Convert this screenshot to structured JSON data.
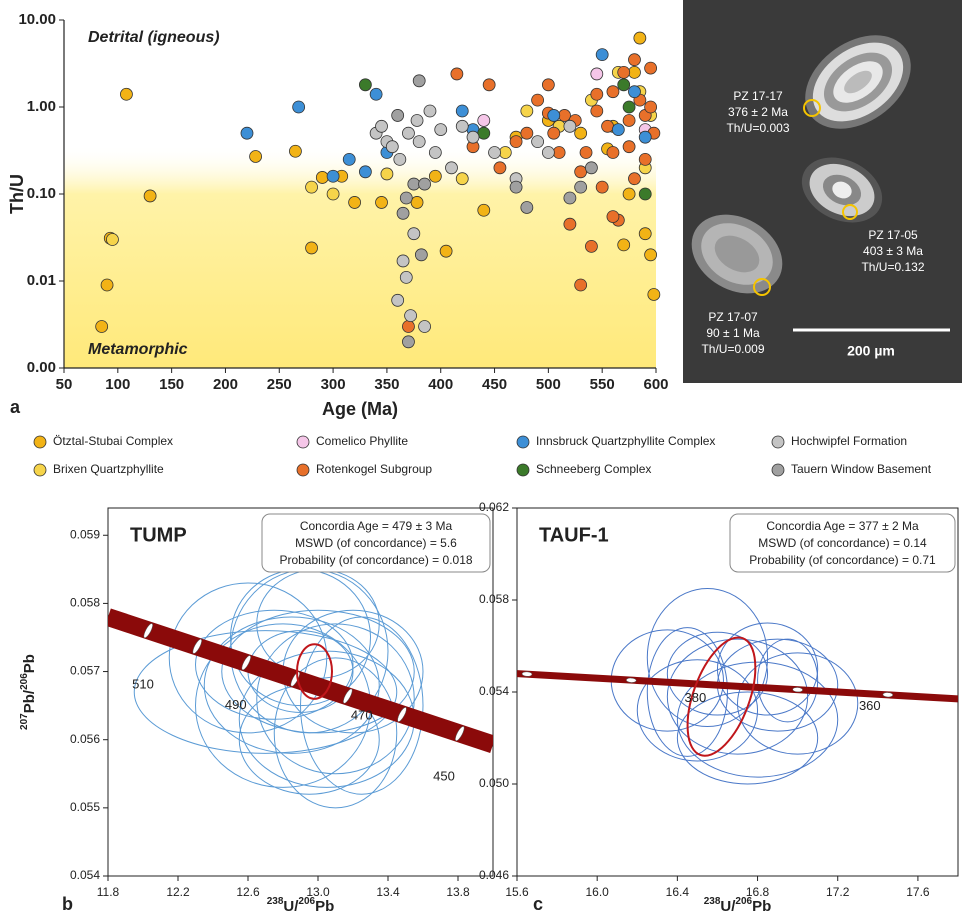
{
  "chart_data": [
    {
      "type": "scatter",
      "panel_label": "a",
      "x_label": "Age (Ma)",
      "y_label": "Th/U",
      "xlim": [
        50,
        600
      ],
      "xticks": [
        50,
        100,
        150,
        200,
        250,
        300,
        350,
        400,
        450,
        500,
        550,
        600
      ],
      "ylim": [
        0.001,
        10
      ],
      "yscale": "log",
      "yticks": [
        {
          "value": 0.001,
          "label": "0.00"
        },
        {
          "value": 0.01,
          "label": "0.01"
        },
        {
          "value": 0.1,
          "label": "0.10"
        },
        {
          "value": 1,
          "label": "1.00"
        },
        {
          "value": 10,
          "label": "10.00"
        }
      ],
      "annotations": [
        "Detrital (igneous)",
        "Metamorphic"
      ],
      "series": [
        {
          "name": "Ötztal-Stubai Complex",
          "color": "#f2b316",
          "x": [
            85,
            90,
            93,
            108,
            130,
            228,
            265,
            280,
            290,
            308,
            320,
            345,
            378,
            395,
            405,
            440,
            470,
            500,
            530,
            555,
            570,
            585,
            590,
            595,
            598,
            560,
            575,
            580
          ],
          "values": [
            0.003,
            0.009,
            0.031,
            1.4,
            0.095,
            0.27,
            0.31,
            0.024,
            0.155,
            0.16,
            0.08,
            0.08,
            0.08,
            0.16,
            0.022,
            0.065,
            0.45,
            0.7,
            0.5,
            0.33,
            0.026,
            6.2,
            0.035,
            0.02,
            0.007,
            0.6,
            0.1,
            2.5
          ]
        },
        {
          "name": "Brixen Quartzphyllite",
          "color": "#f6d44a",
          "x": [
            95,
            280,
            300,
            350,
            420,
            460,
            480,
            510,
            540,
            565,
            585,
            595,
            590
          ],
          "values": [
            0.03,
            0.12,
            0.1,
            0.17,
            0.15,
            0.3,
            0.9,
            0.6,
            1.2,
            2.5,
            1.5,
            0.8,
            0.2
          ]
        },
        {
          "name": "Comelico Phyllite",
          "color": "#f5c6e8",
          "x": [
            440,
            545,
            590
          ],
          "values": [
            0.7,
            2.4,
            0.55
          ]
        },
        {
          "name": "Rotenkogel Subgroup",
          "color": "#e8702a",
          "x": [
            370,
            415,
            430,
            445,
            455,
            470,
            480,
            490,
            500,
            505,
            510,
            515,
            520,
            525,
            530,
            535,
            540,
            545,
            550,
            555,
            560,
            565,
            570,
            575,
            580,
            585,
            590,
            595,
            598,
            545,
            560,
            575,
            590,
            530,
            500,
            560,
            580,
            595
          ],
          "values": [
            0.003,
            2.4,
            0.35,
            1.8,
            0.2,
            0.4,
            0.5,
            1.2,
            1.8,
            0.5,
            0.3,
            0.8,
            0.045,
            0.7,
            0.009,
            0.3,
            0.025,
            0.9,
            0.12,
            0.6,
            1.5,
            0.05,
            2.5,
            0.35,
            0.15,
            1.2,
            0.8,
            2.8,
            0.5,
            1.4,
            0.3,
            0.7,
            0.25,
            0.18,
            0.85,
            0.055,
            3.5,
            1.0
          ]
        },
        {
          "name": "Innsbruck Quartzphyllite Complex",
          "color": "#3d8fd6",
          "x": [
            220,
            268,
            300,
            315,
            330,
            340,
            350,
            420,
            430,
            505,
            550,
            565,
            580,
            590
          ],
          "values": [
            0.5,
            1.0,
            0.16,
            0.25,
            0.18,
            1.4,
            0.3,
            0.9,
            0.55,
            0.8,
            4.0,
            0.55,
            1.5,
            0.45
          ]
        },
        {
          "name": "Schneeberg Complex",
          "color": "#3b7a2a",
          "x": [
            330,
            440,
            570,
            575,
            590
          ],
          "values": [
            1.8,
            0.5,
            1.8,
            1.0,
            0.1
          ]
        },
        {
          "name": "Hochwipfel Formation",
          "color": "#c4c4c4",
          "x": [
            340,
            345,
            350,
            355,
            360,
            362,
            365,
            368,
            370,
            372,
            375,
            378,
            380,
            385,
            390,
            395,
            400,
            410,
            420,
            430,
            450,
            470,
            490,
            500,
            520
          ],
          "values": [
            0.5,
            0.6,
            0.4,
            0.35,
            0.006,
            0.25,
            0.017,
            0.011,
            0.5,
            0.004,
            0.035,
            0.7,
            0.4,
            0.003,
            0.9,
            0.3,
            0.55,
            0.2,
            0.6,
            0.45,
            0.3,
            0.15,
            0.4,
            0.3,
            0.6
          ]
        },
        {
          "name": "Tauern Window Basement",
          "color": "#a0a0a0",
          "x": [
            360,
            365,
            368,
            370,
            375,
            380,
            382,
            385,
            470,
            480,
            520,
            530,
            540
          ],
          "values": [
            0.8,
            0.06,
            0.09,
            0.002,
            0.13,
            2.0,
            0.02,
            0.13,
            0.12,
            0.07,
            0.09,
            0.12,
            0.2
          ]
        }
      ]
    },
    {
      "type": "concordia",
      "panel_label": "b",
      "title": "TUMP",
      "x_label": [
        "238",
        "U/",
        "206",
        "Pb"
      ],
      "y_label": [
        "207",
        "Pb/",
        "206",
        "Pb"
      ],
      "xlim": [
        11.8,
        14.0
      ],
      "xticks": [
        11.8,
        12.2,
        12.6,
        {
          "value": 13,
          "label": "13.0"
        },
        13.4,
        13.8
      ],
      "ylim": [
        0.054,
        0.0594
      ],
      "yticks": [
        0.054,
        0.055,
        0.056,
        0.057,
        0.058,
        0.059
      ],
      "stats": [
        "Concordia Age = 479 ± 3 Ma",
        "MSWD (of concordance) = 5.6",
        "Probability (of concordance) = 0.018"
      ],
      "concordia": {
        "color": "#8b0a0a",
        "x": [
          11.8,
          14.0
        ],
        "y": [
          0.0578,
          0.05593
        ]
      },
      "age_markers": {
        "x": [
          12.03,
          12.31,
          12.59,
          12.87,
          13.17,
          13.48,
          13.81
        ],
        "y": [
          0.0576,
          0.05737,
          0.05713,
          0.05689,
          0.05664,
          0.05637,
          0.05609
        ]
      },
      "age_labels": [
        {
          "text": "510",
          "x": 12.0,
          "y": 0.0568
        },
        {
          "text": "490",
          "x": 12.53,
          "y": 0.0565
        },
        {
          "text": "470",
          "x": 13.25,
          "y": 0.05635
        },
        {
          "text": "450",
          "x": 13.72,
          "y": 0.05545
        }
      ],
      "ellipse_color": "#5b9bd5",
      "ellipses": [
        {
          "x": 12.95,
          "y": 0.0573,
          "rx": 0.45,
          "ry": 0.0012
        },
        {
          "x": 13.0,
          "y": 0.057,
          "rx": 0.55,
          "ry": 0.0009
        },
        {
          "x": 12.85,
          "y": 0.0568,
          "rx": 0.5,
          "ry": 0.001
        },
        {
          "x": 13.1,
          "y": 0.0566,
          "rx": 0.45,
          "ry": 0.0011
        },
        {
          "x": 12.9,
          "y": 0.0575,
          "rx": 0.4,
          "ry": 0.001
        },
        {
          "x": 13.05,
          "y": 0.0563,
          "rx": 0.5,
          "ry": 0.001
        },
        {
          "x": 12.75,
          "y": 0.0571,
          "rx": 0.45,
          "ry": 0.0008
        },
        {
          "x": 13.2,
          "y": 0.057,
          "rx": 0.4,
          "ry": 0.0009
        },
        {
          "x": 12.8,
          "y": 0.0565,
          "rx": 0.5,
          "ry": 0.0012
        },
        {
          "x": 13.0,
          "y": 0.0577,
          "rx": 0.35,
          "ry": 0.0008
        },
        {
          "x": 12.7,
          "y": 0.0567,
          "rx": 0.75,
          "ry": 0.0009
        },
        {
          "x": 13.1,
          "y": 0.0561,
          "rx": 0.35,
          "ry": 0.0011
        },
        {
          "x": 12.95,
          "y": 0.056,
          "rx": 0.4,
          "ry": 0.0008
        },
        {
          "x": 13.25,
          "y": 0.0565,
          "rx": 0.35,
          "ry": 0.0013
        },
        {
          "x": 12.9,
          "y": 0.057,
          "rx": 0.3,
          "ry": 0.0006
        },
        {
          "x": 12.6,
          "y": 0.0572,
          "rx": 0.45,
          "ry": 0.0011
        }
      ],
      "highlight": {
        "color": "#c0161b",
        "x": 12.98,
        "y": 0.057,
        "rx": 0.1,
        "ry": 0.0004
      }
    },
    {
      "type": "concordia",
      "panel_label": "c",
      "title": "TAUF-1",
      "x_label": [
        "238",
        "U/",
        "206",
        "Pb"
      ],
      "xlim": [
        15.6,
        17.8
      ],
      "xticks": [
        15.6,
        {
          "value": 16,
          "label": "16.0"
        },
        16.4,
        16.8,
        17.2,
        17.6
      ],
      "ylim": [
        0.046,
        0.062
      ],
      "yticks": [
        0.046,
        {
          "value": 0.05,
          "label": "0.050"
        },
        0.054,
        0.058,
        0.062
      ],
      "stats": [
        "Concordia Age = 377 ± 2 Ma",
        "MSWD (of concordance) = 0.14",
        "Probability (of concordance) = 0.71"
      ],
      "concordia": {
        "color": "#8b0a0a",
        "x": [
          15.6,
          17.8
        ],
        "y": [
          0.0548,
          0.0537
        ]
      },
      "age_markers": {
        "x": [
          15.65,
          16.17,
          17.0,
          17.45
        ],
        "y": [
          0.05478,
          0.05451,
          0.0541,
          0.05388
        ]
      },
      "age_labels": [
        {
          "text": "380",
          "x": 16.49,
          "y": 0.05372
        },
        {
          "text": "360",
          "x": 17.36,
          "y": 0.05336
        }
      ],
      "ellipse_color": "#4a78c8",
      "ellipses": [
        {
          "x": 16.35,
          "y": 0.0545,
          "rx": 0.28,
          "ry": 0.0022
        },
        {
          "x": 16.55,
          "y": 0.0555,
          "rx": 0.3,
          "ry": 0.003
        },
        {
          "x": 16.7,
          "y": 0.0538,
          "rx": 0.35,
          "ry": 0.0025
        },
        {
          "x": 16.9,
          "y": 0.0543,
          "rx": 0.3,
          "ry": 0.002
        },
        {
          "x": 16.5,
          "y": 0.0532,
          "rx": 0.3,
          "ry": 0.0022
        },
        {
          "x": 16.8,
          "y": 0.0528,
          "rx": 0.4,
          "ry": 0.0025
        },
        {
          "x": 17.0,
          "y": 0.0535,
          "rx": 0.3,
          "ry": 0.0022
        },
        {
          "x": 16.6,
          "y": 0.0548,
          "rx": 0.25,
          "ry": 0.0018
        },
        {
          "x": 16.85,
          "y": 0.055,
          "rx": 0.25,
          "ry": 0.002
        },
        {
          "x": 16.45,
          "y": 0.054,
          "rx": 0.2,
          "ry": 0.0028
        },
        {
          "x": 16.75,
          "y": 0.052,
          "rx": 0.35,
          "ry": 0.002
        },
        {
          "x": 16.95,
          "y": 0.0545,
          "rx": 0.15,
          "ry": 0.0018
        }
      ],
      "highlight": {
        "color": "#c0161b",
        "x": 16.62,
        "y": 0.0538,
        "rx": 0.14,
        "ry": 0.0027
      }
    }
  ],
  "image_panel": {
    "grains": [
      {
        "label": [
          "PZ 17-17",
          "376 ± 2 Ma",
          "Th/U=0.003"
        ]
      },
      {
        "label": [
          "PZ 17-05",
          "403 ± 3 Ma",
          "Th/U=0.132"
        ]
      },
      {
        "label": [
          "PZ 17-07",
          "90 ± 1 Ma",
          "Th/U=0.009"
        ]
      }
    ],
    "scale_bar": "200 µm"
  }
}
